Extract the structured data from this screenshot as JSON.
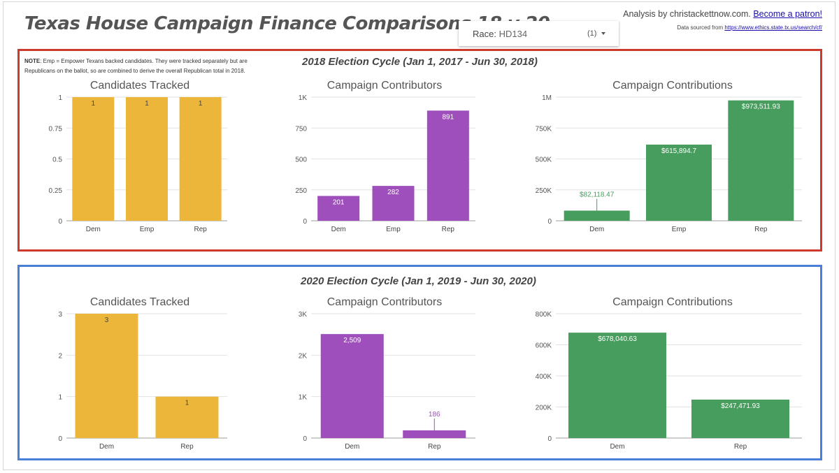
{
  "header": {
    "title": "Texas House Campaign Finance Comparisons 18 v 20",
    "credit_text": "Analysis by christackettnow.com.",
    "patron_link": "Become a patron!",
    "source_text": "Data sourced from",
    "source_link": "https://www.ethics.state.tx.us/search/cf/"
  },
  "filter": {
    "label": "Race:",
    "value": "HD134",
    "count": "(1)",
    "icon": "dropdown-arrow-icon"
  },
  "note": {
    "bold": "NOTE",
    "text": ": Emp = Empower Texans backed candidates. They were tracked separately but are Republicans on the ballot, so are combined to derive the overall Republican total in 2018."
  },
  "sections": {
    "s2018": "2018 Election Cycle (Jan 1, 2017 - Jun 30, 2018)",
    "s2020": "2020 Election Cycle (Jan 1, 2019 - Jun 30, 2020)"
  },
  "colors": {
    "border_2018": "#cc3a2b",
    "border_2020": "#4a7fd9",
    "candidates": "#ebb63a",
    "contributors": "#9e4fbb",
    "contributions": "#479d5d"
  },
  "chart_data": [
    {
      "type": "bar",
      "cycle": "2018",
      "title": "Candidates Tracked",
      "categories": [
        "Dem",
        "Emp",
        "Rep"
      ],
      "values": [
        1,
        1,
        1
      ],
      "value_labels": [
        "1",
        "1",
        "1"
      ],
      "ylim": [
        0,
        1
      ],
      "yticks": [
        0,
        0.25,
        0.5,
        0.75,
        1
      ],
      "ytick_labels": [
        "0",
        "0.25",
        "0.5",
        "0.75",
        "1"
      ],
      "color": "#ebb63a",
      "label_color": "#444444",
      "grid": true
    },
    {
      "type": "bar",
      "cycle": "2018",
      "title": "Campaign Contributors",
      "categories": [
        "Dem",
        "Emp",
        "Rep"
      ],
      "values": [
        201,
        282,
        891
      ],
      "value_labels": [
        "201",
        "282",
        "891"
      ],
      "ylim": [
        0,
        1000
      ],
      "yticks": [
        0,
        250,
        500,
        750,
        1000
      ],
      "ytick_labels": [
        "0",
        "250",
        "500",
        "750",
        "1K"
      ],
      "color": "#9e4fbb",
      "label_color": "#ffffff",
      "grid": true
    },
    {
      "type": "bar",
      "cycle": "2018",
      "title": "Campaign Contributions",
      "categories": [
        "Dem",
        "Emp",
        "Rep"
      ],
      "values": [
        82118.47,
        615894.7,
        973511.93
      ],
      "value_labels": [
        "$82,118.47",
        "$615,894.7",
        "$973,511.93"
      ],
      "ylim": [
        0,
        1000000
      ],
      "yticks": [
        0,
        250000,
        500000,
        750000,
        1000000
      ],
      "ytick_labels": [
        "0",
        "250K",
        "500K",
        "750K",
        "1M"
      ],
      "color": "#479d5d",
      "label_color": "#ffffff",
      "grid": true
    },
    {
      "type": "bar",
      "cycle": "2020",
      "title": "Candidates Tracked",
      "categories": [
        "Dem",
        "Rep"
      ],
      "values": [
        3,
        1
      ],
      "value_labels": [
        "3",
        "1"
      ],
      "ylim": [
        0,
        3
      ],
      "yticks": [
        0,
        1,
        2,
        3
      ],
      "ytick_labels": [
        "0",
        "1",
        "2",
        "3"
      ],
      "color": "#ebb63a",
      "label_color": "#444444",
      "grid": true
    },
    {
      "type": "bar",
      "cycle": "2020",
      "title": "Campaign Contributors",
      "categories": [
        "Dem",
        "Rep"
      ],
      "values": [
        2509,
        186
      ],
      "value_labels": [
        "2,509",
        "186"
      ],
      "ylim": [
        0,
        3000
      ],
      "yticks": [
        0,
        1000,
        2000,
        3000
      ],
      "ytick_labels": [
        "0",
        "1K",
        "2K",
        "3K"
      ],
      "color": "#9e4fbb",
      "label_color": "#ffffff",
      "grid": true
    },
    {
      "type": "bar",
      "cycle": "2020",
      "title": "Campaign Contributions",
      "categories": [
        "Dem",
        "Rep"
      ],
      "values": [
        678040.63,
        247471.93
      ],
      "value_labels": [
        "$678,040.63",
        "$247,471.93"
      ],
      "ylim": [
        0,
        800000
      ],
      "yticks": [
        0,
        200000,
        400000,
        600000,
        800000
      ],
      "ytick_labels": [
        "0",
        "200K",
        "400K",
        "600K",
        "800K"
      ],
      "color": "#479d5d",
      "label_color": "#ffffff",
      "grid": true
    }
  ]
}
